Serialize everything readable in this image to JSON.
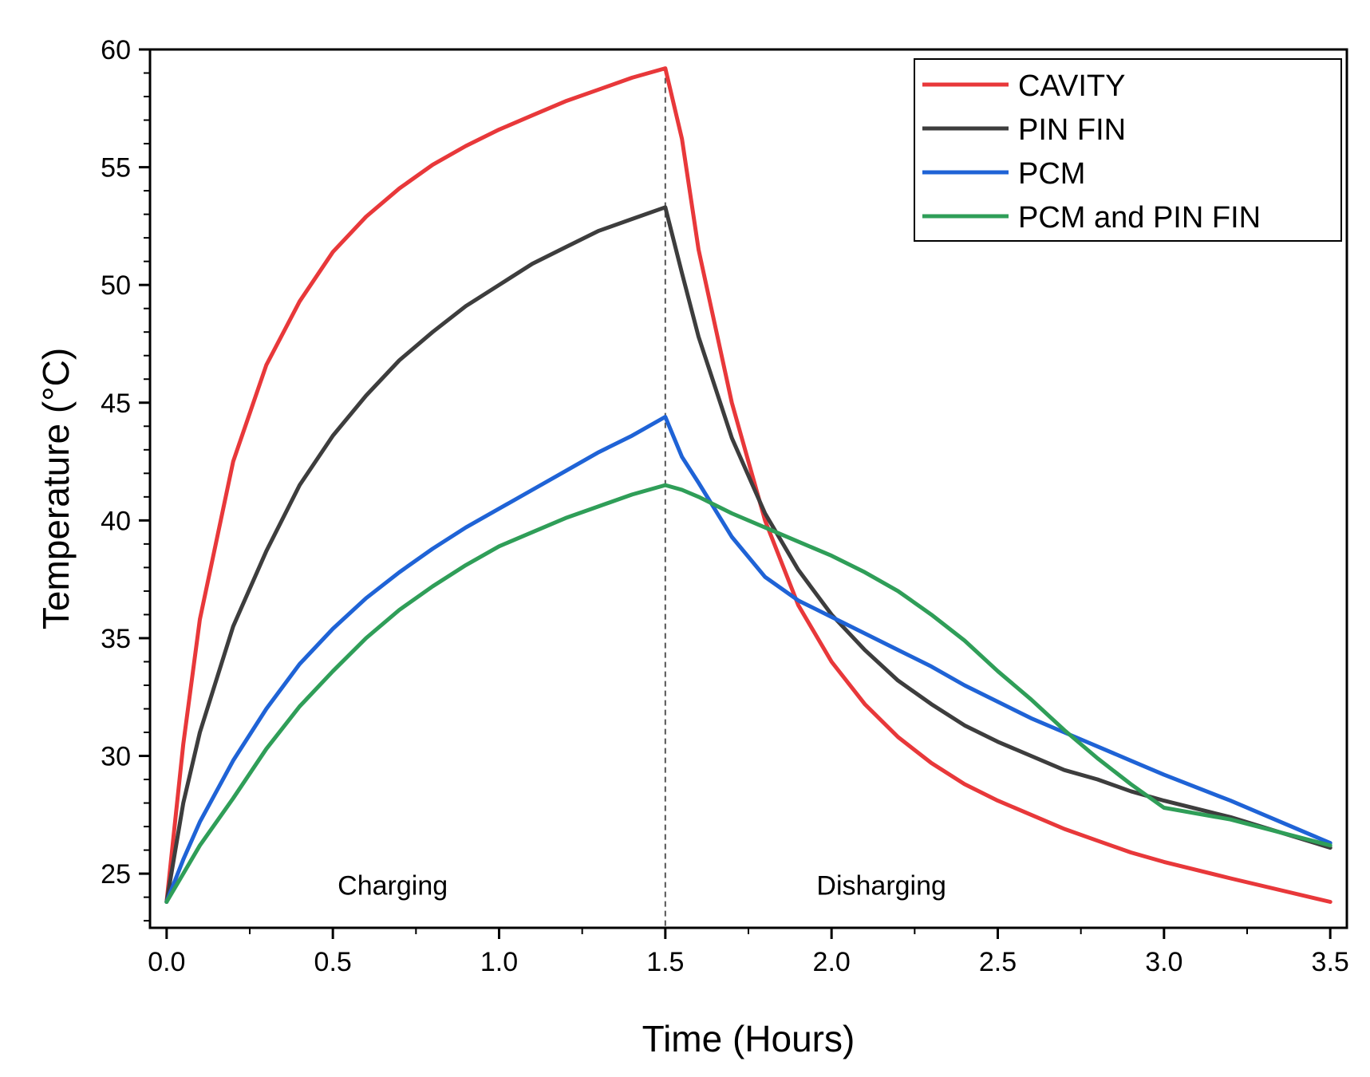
{
  "chart_data": {
    "type": "line",
    "title": "",
    "xlabel": "Time (Hours)",
    "ylabel": "Temperature (°C)",
    "xlim": [
      -0.05,
      3.55
    ],
    "ylim": [
      22.7,
      60
    ],
    "xticks": [
      0.0,
      0.5,
      1.0,
      1.5,
      2.0,
      2.5,
      3.0,
      3.5
    ],
    "xtick_labels": [
      "0.0",
      "0.5",
      "1.0",
      "1.5",
      "2.0",
      "2.5",
      "3.0",
      "3.5"
    ],
    "yticks": [
      25,
      30,
      35,
      40,
      45,
      50,
      55,
      60
    ],
    "ytick_labels": [
      "25",
      "30",
      "35",
      "40",
      "45",
      "50",
      "55",
      "60"
    ],
    "legend_position": "top-right",
    "annotations": [
      {
        "text": "Charging",
        "x": 0.68,
        "y": 24.1
      },
      {
        "text": "Disharging",
        "x": 2.15,
        "y": 24.1
      }
    ],
    "vertical_marker": {
      "x": 1.5,
      "style": "dashed"
    },
    "series": [
      {
        "name": "CAVITY",
        "color": "#e8383a",
        "x": [
          0.0,
          0.05,
          0.1,
          0.2,
          0.3,
          0.4,
          0.5,
          0.6,
          0.7,
          0.8,
          0.9,
          1.0,
          1.1,
          1.2,
          1.3,
          1.4,
          1.5,
          1.55,
          1.6,
          1.7,
          1.8,
          1.9,
          2.0,
          2.1,
          2.2,
          2.3,
          2.4,
          2.5,
          2.6,
          2.7,
          2.8,
          2.9,
          3.0,
          3.2,
          3.5
        ],
        "y": [
          23.8,
          30.5,
          35.8,
          42.5,
          46.6,
          49.3,
          51.4,
          52.9,
          54.1,
          55.1,
          55.9,
          56.6,
          57.2,
          57.8,
          58.3,
          58.8,
          59.2,
          56.2,
          51.5,
          45.0,
          40.0,
          36.4,
          34.0,
          32.2,
          30.8,
          29.7,
          28.8,
          28.1,
          27.5,
          26.9,
          26.4,
          25.9,
          25.5,
          24.8,
          23.8
        ]
      },
      {
        "name": "PIN FIN",
        "color": "#3d3d3d",
        "x": [
          0.0,
          0.05,
          0.1,
          0.2,
          0.3,
          0.4,
          0.5,
          0.6,
          0.7,
          0.8,
          0.9,
          1.0,
          1.1,
          1.2,
          1.3,
          1.4,
          1.5,
          1.55,
          1.6,
          1.7,
          1.8,
          1.9,
          2.0,
          2.1,
          2.2,
          2.3,
          2.4,
          2.5,
          2.6,
          2.7,
          2.8,
          2.9,
          3.0,
          3.2,
          3.5
        ],
        "y": [
          23.8,
          28.0,
          31.0,
          35.5,
          38.7,
          41.5,
          43.6,
          45.3,
          46.8,
          48.0,
          49.1,
          50.0,
          50.9,
          51.6,
          52.3,
          52.8,
          53.3,
          50.5,
          47.8,
          43.5,
          40.3,
          37.9,
          36.0,
          34.5,
          33.2,
          32.2,
          31.3,
          30.6,
          30.0,
          29.4,
          29.0,
          28.5,
          28.1,
          27.4,
          26.1
        ]
      },
      {
        "name": "PCM",
        "color": "#1f63d6",
        "x": [
          0.0,
          0.05,
          0.1,
          0.2,
          0.3,
          0.4,
          0.5,
          0.6,
          0.7,
          0.8,
          0.9,
          1.0,
          1.1,
          1.2,
          1.3,
          1.4,
          1.5,
          1.55,
          1.6,
          1.7,
          1.8,
          1.9,
          2.0,
          2.1,
          2.2,
          2.3,
          2.4,
          2.5,
          2.6,
          2.7,
          2.8,
          2.9,
          3.0,
          3.2,
          3.5
        ],
        "y": [
          23.8,
          25.6,
          27.2,
          29.8,
          32.0,
          33.9,
          35.4,
          36.7,
          37.8,
          38.8,
          39.7,
          40.5,
          41.3,
          42.1,
          42.9,
          43.6,
          44.4,
          42.7,
          41.6,
          39.3,
          37.6,
          36.6,
          35.9,
          35.2,
          34.5,
          33.8,
          33.0,
          32.3,
          31.6,
          31.0,
          30.4,
          29.8,
          29.2,
          28.1,
          26.3
        ]
      },
      {
        "name": "PCM and PIN FIN",
        "color": "#2f9e58",
        "x": [
          0.0,
          0.05,
          0.1,
          0.2,
          0.3,
          0.4,
          0.5,
          0.6,
          0.7,
          0.8,
          0.9,
          1.0,
          1.1,
          1.2,
          1.3,
          1.4,
          1.5,
          1.55,
          1.6,
          1.7,
          1.8,
          1.9,
          2.0,
          2.1,
          2.2,
          2.3,
          2.4,
          2.5,
          2.6,
          2.7,
          2.8,
          2.9,
          3.0,
          3.2,
          3.5
        ],
        "y": [
          23.8,
          25.0,
          26.2,
          28.2,
          30.3,
          32.1,
          33.6,
          35.0,
          36.2,
          37.2,
          38.1,
          38.9,
          39.5,
          40.1,
          40.6,
          41.1,
          41.5,
          41.3,
          41.0,
          40.3,
          39.7,
          39.1,
          38.5,
          37.8,
          37.0,
          36.0,
          34.9,
          33.6,
          32.4,
          31.1,
          29.9,
          28.8,
          27.8,
          27.3,
          26.2
        ]
      }
    ]
  }
}
